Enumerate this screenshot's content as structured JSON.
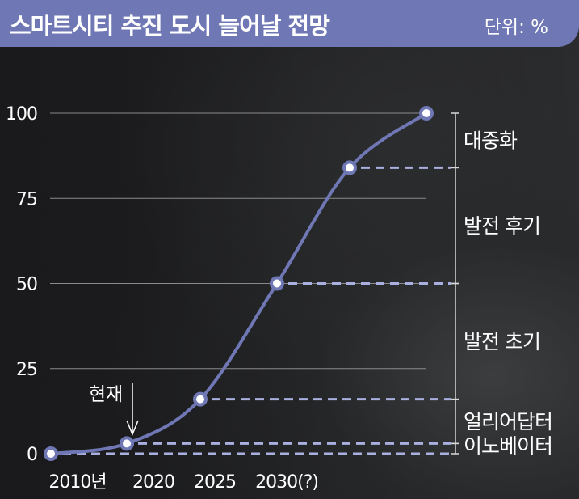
{
  "header": {
    "title": "스마트시티 추진 도시 늘어날 전망",
    "unit": "단위: %"
  },
  "colors": {
    "accent": "#6f78b5",
    "line": "#6f78b5",
    "dashed": "#a9b0e0",
    "grid": "#8a8a8a",
    "text": "#ffffff"
  },
  "chart_data": {
    "type": "line",
    "title": "스마트시티 추진 도시 늘어날 전망",
    "unit": "%",
    "ylim": [
      0,
      100
    ],
    "y_ticks": [
      0,
      25,
      50,
      75,
      100
    ],
    "x_tick_labels": [
      {
        "x": 2010,
        "label": "2010년"
      },
      {
        "x": 2020,
        "label": "2020"
      },
      {
        "x": 2025,
        "label": "2025"
      },
      {
        "x": 2030,
        "label": "2030(?)"
      }
    ],
    "grid": true,
    "points": [
      {
        "x": 2010,
        "y": 0
      },
      {
        "x": 2020,
        "y": 3
      },
      {
        "x": 2025,
        "y": 16
      },
      {
        "x": 2030,
        "y": 50
      },
      {
        "x": 2035,
        "y": 84
      },
      {
        "x": 2045,
        "y": 100
      }
    ],
    "annotation": {
      "label": "현재",
      "x": 2020
    },
    "stages": [
      {
        "label": "이노베이터",
        "from": 0,
        "to": 3
      },
      {
        "label": "얼리어답터",
        "from": 3,
        "to": 16
      },
      {
        "label": "발전 초기",
        "from": 16,
        "to": 50
      },
      {
        "label": "발전 후기",
        "from": 50,
        "to": 84
      },
      {
        "label": "대중화",
        "from": 84,
        "to": 100
      }
    ]
  }
}
